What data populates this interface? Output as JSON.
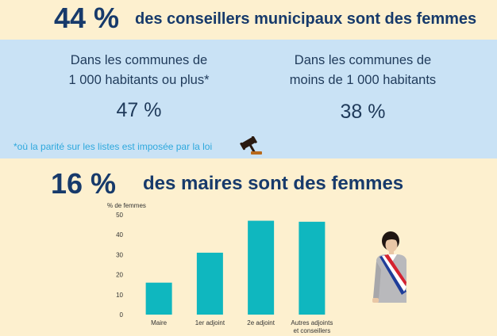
{
  "top": {
    "pct": "44 %",
    "text": "des conseillers municipaux sont des femmes"
  },
  "band": {
    "left_label_line1": "Dans les communes de",
    "left_label_line2": "1 000 habitants ou plus*",
    "left_value": "47 %",
    "right_label_line1": "Dans les communes de",
    "right_label_line2": "moins de 1 000 habitants",
    "right_value": "38 %",
    "footnote": "*où la parité sur les listes est imposée par la loi"
  },
  "maires": {
    "pct": "16 %",
    "text": "des maires sont des femmes"
  },
  "icons": [
    "gavel-icon",
    "mayor-with-sash-illustration"
  ],
  "colors": {
    "background": "#fdf0cf",
    "band": "#c9e2f5",
    "headline": "#173a6b",
    "bar": "#0fb7bf",
    "footnote": "#2ea8dd"
  },
  "chart_data": {
    "type": "bar",
    "ylabel": "% de femmes",
    "categories": [
      "Maire",
      "1er adjoint",
      "2e adjoint",
      "Autres adjoints|et conseillers"
    ],
    "values": [
      16,
      31,
      47,
      46.5
    ],
    "ylim": [
      0,
      50
    ],
    "yticks": [
      0,
      10,
      20,
      30,
      40,
      50
    ],
    "grid": false
  }
}
